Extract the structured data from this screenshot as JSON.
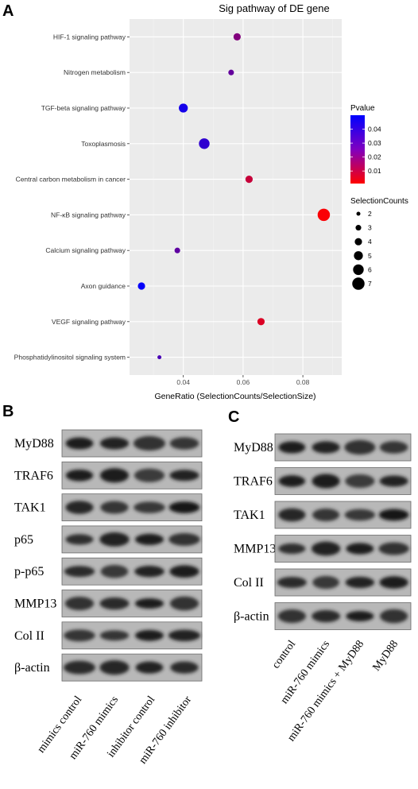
{
  "chart_data": [
    {
      "type": "scatter",
      "panel": "A",
      "title": "Sig pathway of DE gene",
      "xlabel": "GeneRatio (SelectionCounts/SelectionSize)",
      "ylabel": "",
      "xlim": [
        0.022,
        0.093
      ],
      "xticks": [
        0.04,
        0.06,
        0.08
      ],
      "xtick_labels": [
        "0.04",
        "0.06",
        "0.08"
      ],
      "grid": true,
      "legend_position": "right",
      "color_legend": {
        "title": "Pvalue",
        "ticks": [
          "0.04",
          "0.03",
          "0.02",
          "0.01"
        ],
        "low_color": "#ff0000",
        "high_color": "#0000ff"
      },
      "size_legend": {
        "title": "SelectionCounts",
        "values": [
          "2",
          "3",
          "4",
          "5",
          "6",
          "7"
        ]
      },
      "points": [
        {
          "pathway": "HIF-1 signaling pathway",
          "x": 0.058,
          "counts": 4,
          "pvalue": 0.025
        },
        {
          "pathway": "Nitrogen metabolism",
          "x": 0.056,
          "counts": 3,
          "pvalue": 0.031
        },
        {
          "pathway": "TGF-beta signaling pathway",
          "x": 0.04,
          "counts": 5,
          "pvalue": 0.046
        },
        {
          "pathway": "Toxoplasmosis",
          "x": 0.047,
          "counts": 6,
          "pvalue": 0.041
        },
        {
          "pathway": "Central carbon metabolism in cancer",
          "x": 0.062,
          "counts": 4,
          "pvalue": 0.012
        },
        {
          "pathway": "NF-κB signaling pathway",
          "x": 0.087,
          "counts": 7,
          "pvalue": 0.002
        },
        {
          "pathway": "Calcium signaling pathway",
          "x": 0.038,
          "counts": 3,
          "pvalue": 0.032
        },
        {
          "pathway": "Axon guidance",
          "x": 0.026,
          "counts": 4,
          "pvalue": 0.049
        },
        {
          "pathway": "VEGF signaling pathway",
          "x": 0.066,
          "counts": 4,
          "pvalue": 0.008
        },
        {
          "pathway": "Phosphatidylinositol signaling system",
          "x": 0.032,
          "counts": 2,
          "pvalue": 0.036
        }
      ]
    }
  ],
  "blots": {
    "B": {
      "letter": "B",
      "proteins": [
        "MyD88",
        "TRAF6",
        "TAK1",
        "p65",
        "p-p65",
        "MMP13",
        "Col II",
        "β-actin"
      ],
      "lanes": [
        "mimics control",
        "miR-760 mimics",
        "inhibitor control",
        "miR-760 inhibitor"
      ]
    },
    "C": {
      "letter": "C",
      "proteins": [
        "MyD88",
        "TRAF6",
        "TAK1",
        "MMP13",
        "Col II",
        "β-actin"
      ],
      "lanes": [
        "control",
        "miR-760 mimics",
        "miR-760 mimics + MyD88",
        "MyD88"
      ]
    }
  },
  "panel_a_letter": "A"
}
